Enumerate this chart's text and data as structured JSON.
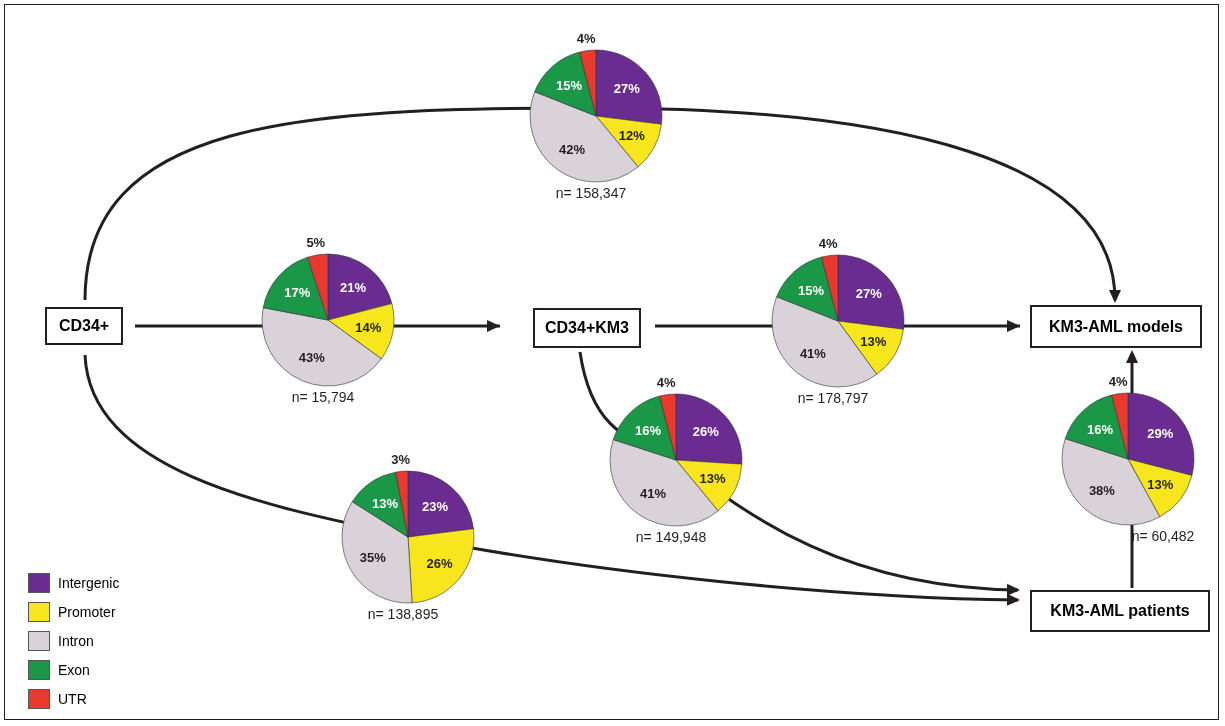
{
  "chart_data": [
    {
      "type": "pie",
      "subtitle": "n= 158,347",
      "categories": [
        "Intergenic",
        "Promoter",
        "Intron",
        "Exon",
        "UTR"
      ],
      "values": [
        27,
        12,
        42,
        15,
        4
      ],
      "value_labels": [
        "27%",
        "12%",
        "42%",
        "15%",
        "4%"
      ],
      "colors": [
        "#6b2c91",
        "#f7e51e",
        "#d9d2d9",
        "#1b9748",
        "#e8392f"
      ],
      "legend": "bottom left"
    },
    {
      "type": "pie",
      "subtitle": "n= 15,794",
      "categories": [
        null,
        null,
        null,
        null,
        null
      ],
      "values": [
        21,
        14,
        43,
        17,
        5
      ],
      "value_labels": [
        "21%",
        "14%",
        "43%",
        "17%",
        "5%"
      ],
      "colors": [
        "#6b2c91",
        "#f7e51e",
        "#d9d2d9",
        "#1b9748",
        "#e8392f"
      ]
    },
    {
      "type": "pie",
      "subtitle": "n= 178,797",
      "categories": [
        null,
        null,
        null,
        null,
        null
      ],
      "values": [
        27,
        13,
        41,
        15,
        4
      ],
      "value_labels": [
        "27%",
        "13%",
        "41%",
        "15%",
        "4%"
      ],
      "colors": [
        "#6b2c91",
        "#f7e51e",
        "#d9d2d9",
        "#1b9748",
        "#e8392f"
      ]
    },
    {
      "type": "pie",
      "subtitle": "n= 60,482",
      "categories": [
        null,
        null,
        null,
        null,
        null
      ],
      "values": [
        29,
        13,
        38,
        16,
        4
      ],
      "value_labels": [
        "29%",
        "13%",
        "38%",
        "16%",
        "4%"
      ],
      "colors": [
        "#6b2c91",
        "#f7e51e",
        "#d9d2d9",
        "#1b9748",
        "#e8392f"
      ]
    },
    {
      "type": "pie",
      "subtitle": "n= 149,948",
      "categories": [
        null,
        null,
        null,
        null,
        null
      ],
      "values": [
        26,
        13,
        41,
        16,
        4
      ],
      "value_labels": [
        "26%",
        "13%",
        "41%",
        "16%",
        "4%"
      ],
      "colors": [
        "#6b2c91",
        "#f7e51e",
        "#d9d2d9",
        "#1b9748",
        "#e8392f"
      ]
    },
    {
      "type": "pie",
      "subtitle": "n= 138,895",
      "categories": [
        null,
        null,
        null,
        null,
        null
      ],
      "values": [
        23,
        26,
        35,
        13,
        3
      ],
      "value_labels": [
        "23%",
        "26%",
        "35%",
        "13%",
        "3%"
      ],
      "colors": [
        "#6b2c91",
        "#f7e51e",
        "#d9d2d9",
        "#1b9748",
        "#e8392f"
      ]
    },
    {
      "type": "other",
      "annotations": [
        "CD34+",
        "CD34+KM3",
        "KM3-AML models",
        "KM3-AML patients"
      ]
    }
  ]
}
